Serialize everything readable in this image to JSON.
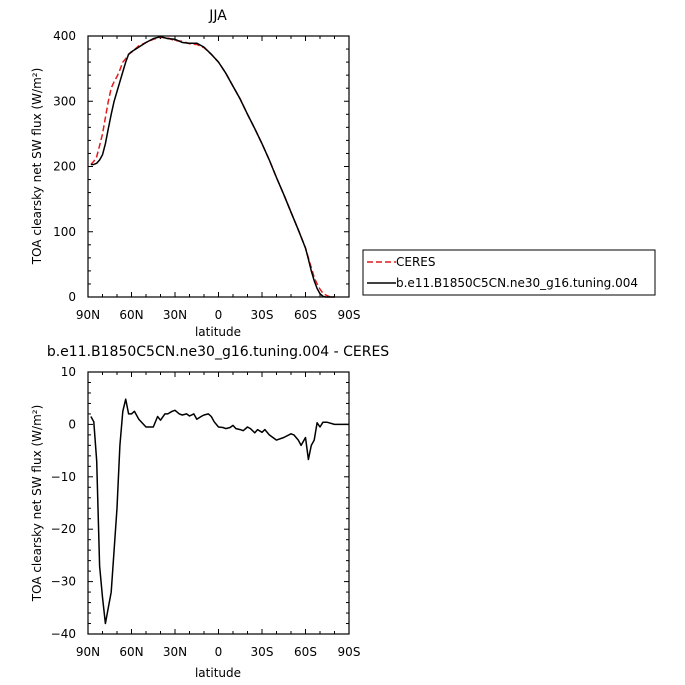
{
  "chart_data": [
    {
      "type": "line",
      "title": "JJA",
      "xlabel": "latitude",
      "ylabel": "TOA clearsky net SW flux (W/m²)",
      "xlim": [
        90,
        -90
      ],
      "ylim": [
        0,
        400
      ],
      "x_ticks": [
        90,
        60,
        30,
        0,
        -30,
        -60,
        -90
      ],
      "x_tick_labels": [
        "90N",
        "60N",
        "30N",
        "0",
        "30S",
        "60S",
        "90S"
      ],
      "y_ticks": [
        0,
        100,
        200,
        300,
        400
      ],
      "y_tick_labels": [
        "0",
        "100",
        "200",
        "300",
        "400"
      ],
      "legend_position": "right",
      "series": [
        {
          "name": "CERES",
          "color": "#e41a1c",
          "style": "dashed",
          "x": [
            88,
            86,
            84,
            82,
            80,
            78,
            76,
            74,
            72,
            70,
            68,
            66,
            64,
            62,
            60,
            55,
            50,
            45,
            40,
            35,
            30,
            25,
            20,
            15,
            10,
            5,
            0,
            -5,
            -10,
            -15,
            -20,
            -25,
            -30,
            -35,
            -40,
            -45,
            -50,
            -55,
            -60,
            -62,
            -64,
            -66,
            -68,
            -70,
            -72,
            -74,
            -76,
            -78,
            -80
          ],
          "values": [
            203,
            208,
            215,
            232,
            250,
            275,
            300,
            320,
            330,
            338,
            348,
            360,
            365,
            372,
            375,
            385,
            390,
            395,
            398,
            397,
            393,
            392,
            388,
            387,
            382,
            372,
            360,
            343,
            323,
            303,
            280,
            258,
            235,
            210,
            183,
            157,
            130,
            103,
            75,
            60,
            45,
            30,
            20,
            12,
            6,
            3,
            1,
            0,
            0
          ]
        },
        {
          "name": "b.e11.B1850C5CN.ne30_g16.tuning.004",
          "color": "#000000",
          "style": "solid",
          "x": [
            88,
            86,
            84,
            82,
            80,
            78,
            76,
            74,
            72,
            70,
            68,
            66,
            64,
            62,
            60,
            55,
            50,
            45,
            40,
            35,
            30,
            25,
            20,
            15,
            10,
            5,
            0,
            -5,
            -10,
            -15,
            -20,
            -25,
            -30,
            -35,
            -40,
            -45,
            -50,
            -55,
            -60,
            -62,
            -64,
            -66,
            -68,
            -70,
            -72,
            -74,
            -76,
            -78,
            -80
          ],
          "values": [
            203,
            203,
            205,
            210,
            218,
            235,
            258,
            280,
            300,
            315,
            330,
            345,
            360,
            372,
            376,
            383,
            390,
            396,
            399,
            396,
            395,
            390,
            389,
            389,
            383,
            372,
            360,
            343,
            323,
            303,
            280,
            258,
            235,
            210,
            183,
            157,
            130,
            103,
            75,
            58,
            40,
            25,
            13,
            5,
            1,
            0,
            0,
            0,
            0
          ]
        }
      ]
    },
    {
      "type": "line",
      "title": "b.e11.B1850C5CN.ne30_g16.tuning.004 - CERES",
      "xlabel": "latitude",
      "ylabel": "TOA clearsky net SW flux (W/m²)",
      "xlim": [
        90,
        -90
      ],
      "ylim": [
        -40,
        10
      ],
      "x_ticks": [
        90,
        60,
        30,
        0,
        -30,
        -60,
        -90
      ],
      "x_tick_labels": [
        "90N",
        "60N",
        "30N",
        "0",
        "30S",
        "60S",
        "90S"
      ],
      "y_ticks": [
        -40,
        -30,
        -20,
        -10,
        0,
        10
      ],
      "y_tick_labels": [
        "−40",
        "−30",
        "−20",
        "−10",
        "0",
        "10"
      ],
      "series": [
        {
          "color": "#000000",
          "style": "solid",
          "x": [
            88,
            86,
            84,
            82,
            80,
            78,
            76,
            74,
            72,
            70,
            68,
            66,
            64,
            62,
            60,
            58,
            55,
            50,
            45,
            42,
            40,
            37,
            35,
            32,
            30,
            27,
            25,
            22,
            20,
            17,
            15,
            12,
            10,
            7,
            5,
            3,
            0,
            -3,
            -5,
            -8,
            -10,
            -12,
            -15,
            -17,
            -20,
            -22,
            -25,
            -27,
            -30,
            -32,
            -35,
            -40,
            -45,
            -50,
            -52,
            -55,
            -57,
            -60,
            -62,
            -64,
            -66,
            -68,
            -70,
            -72,
            -75,
            -80,
            -85,
            -90
          ],
          "values": [
            1.5,
            0.5,
            -7,
            -27,
            -33,
            -38,
            -35,
            -32,
            -24,
            -16,
            -4,
            2.5,
            4.8,
            2,
            2,
            2.5,
            1,
            -0.5,
            -0.5,
            1.5,
            0.8,
            2,
            2,
            2.5,
            2.7,
            2,
            1.8,
            2,
            1.6,
            2,
            1,
            1.5,
            1.8,
            2,
            1.5,
            0.5,
            -0.5,
            -0.6,
            -0.8,
            -0.6,
            -0.2,
            -0.8,
            -1,
            -1.2,
            -0.5,
            -0.8,
            -1.6,
            -1,
            -1.5,
            -1,
            -2,
            -3,
            -2.5,
            -1.8,
            -2,
            -3,
            -4,
            -2.5,
            -6.7,
            -4,
            -3,
            0.3,
            -0.5,
            0.4,
            0.4,
            0,
            0,
            0
          ]
        }
      ]
    }
  ]
}
